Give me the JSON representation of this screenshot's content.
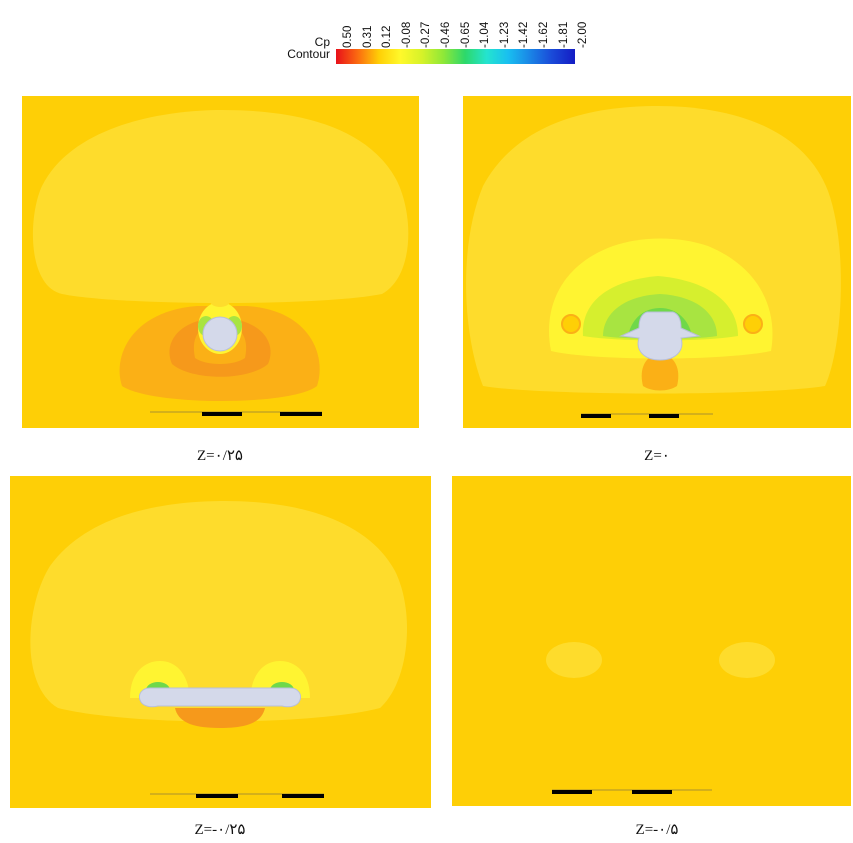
{
  "legend": {
    "variable": "Cp",
    "type": "Contour",
    "ticks": [
      "0.50",
      "0.31",
      "0.12",
      "-0.08",
      "-0.27",
      "-0.46",
      "-0.65",
      "-1.04",
      "-1.23",
      "-1.42",
      "-1.62",
      "-1.81",
      "-2.00"
    ]
  },
  "colors": {
    "background_field": "#fecf06",
    "outer_lobe": "#fedc2c",
    "high_pressure": "#fbb016",
    "high_pressure_core": "#f6991b",
    "low_pressure_ring": "#fff431",
    "suction_green": "#a8e441",
    "suction_core": "#6fd84a",
    "body": "#d4d9ea"
  },
  "panels": [
    {
      "id": "p1",
      "caption": "Z=۰/۲۵"
    },
    {
      "id": "p2",
      "caption": "Z=۰"
    },
    {
      "id": "p3",
      "caption": "Z=-۰/۲۵"
    },
    {
      "id": "p4",
      "caption": "Z=-۰/۵"
    }
  ]
}
